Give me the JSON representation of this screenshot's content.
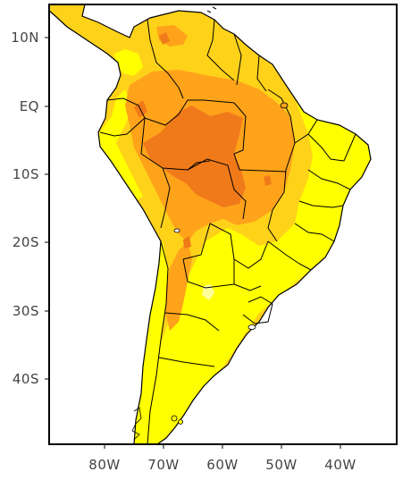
{
  "map": {
    "region": "South America",
    "colors": {
      "frame": "#000000",
      "water": "#ffffff",
      "pale_yellow": "#ffff4d",
      "yellow": "#ffff00",
      "light_orange": "#ffd21a",
      "orange": "#ffa31a",
      "dark_orange": "#f07a1a",
      "border": "#000000"
    },
    "y_axis_labels": [
      "10N",
      "EQ",
      "10S",
      "20S",
      "30S",
      "40S"
    ],
    "x_axis_labels": [
      "80W",
      "70W",
      "60W",
      "50W",
      "40W"
    ]
  }
}
